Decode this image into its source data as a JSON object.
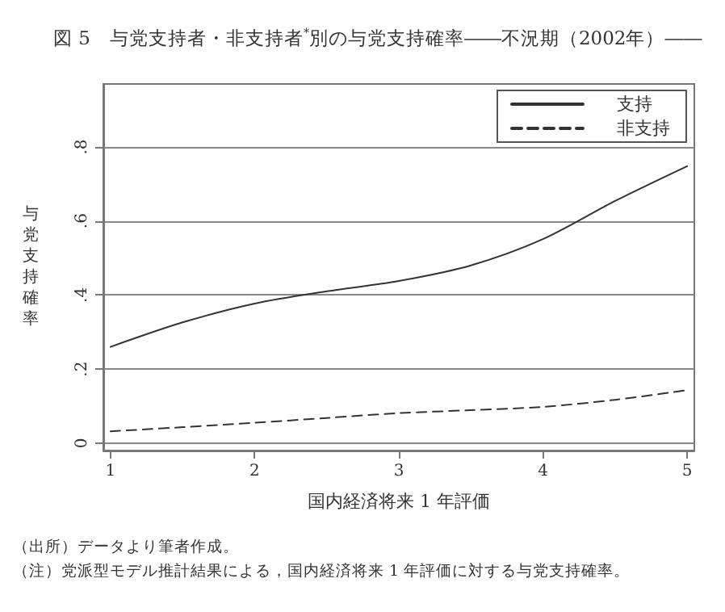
{
  "chart_data": {
    "type": "line",
    "title": "図 5　与党支持者・非支持者$^{*}$別の与党支持確率――不況期（2002年）――",
    "xlabel": "国内経済将来 1 年評価",
    "ylabel": "与党支持確率",
    "x": [
      1,
      1.5,
      2,
      2.5,
      3,
      3.5,
      4,
      4.5,
      5
    ],
    "series": [
      {
        "name": "支持",
        "color": "#333333",
        "line_style": "solid",
        "values": [
          0.26,
          0.326,
          0.377,
          0.41,
          0.438,
          0.48,
          0.551,
          0.654,
          0.748
        ]
      },
      {
        "name": "非支持",
        "color": "#333333",
        "line_style": "dashed",
        "values": [
          0.032,
          0.043,
          0.055,
          0.068,
          0.081,
          0.089,
          0.098,
          0.117,
          0.143
        ]
      }
    ],
    "xlim": [
      0.95,
      5.05
    ],
    "xticks": [
      1,
      2,
      3,
      4,
      5
    ],
    "ylim": [
      -0.02,
      0.97
    ],
    "yticks": [
      {
        "value": 0,
        "label": "0"
      },
      {
        "value": 0.2,
        "label": ".2"
      },
      {
        "value": 0.4,
        "label": ".4"
      },
      {
        "value": 0.6,
        "label": ".6"
      },
      {
        "value": 0.8,
        "label": ".8"
      }
    ],
    "grid": "y",
    "legend": "top right",
    "marker": "none",
    "annotations": [
      "（出所）データより筆者作成。",
      "（注）党派型モデル推計結果による，国内経済将来 1 年評価に対する与党支持確率。"
    ]
  }
}
